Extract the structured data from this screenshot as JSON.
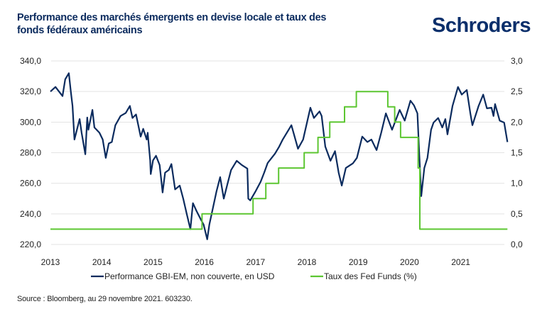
{
  "header": {
    "title": "Performance des marchés émergents en devise locale et taux des fonds fédéraux américains",
    "logo_text": "Schroders"
  },
  "footer": {
    "source": "Source : Bloomberg, au 29 novembre 2021. 603230."
  },
  "colors": {
    "gbi": "#0b2b5e",
    "fed": "#5cc631",
    "grid": "#e3e3e3",
    "text": "#222222"
  },
  "chart_data": {
    "type": "line",
    "title": "",
    "x_ticks": [
      "2013",
      "2014",
      "2015",
      "2016",
      "2017",
      "2018",
      "2019",
      "2020",
      "2021"
    ],
    "xlim": [
      "2013-01-01",
      "2022-01-01"
    ],
    "y_left": {
      "lim": [
        220,
        340
      ],
      "ticks": [
        "220,0",
        "240,0",
        "260,0",
        "280,0",
        "300,0",
        "320,0",
        "340,0"
      ]
    },
    "y_right": {
      "lim": [
        0,
        3
      ],
      "ticks": [
        "0,0",
        "0,5",
        "1,0",
        "1,5",
        "2,0",
        "2,5",
        "3,0"
      ]
    },
    "grid": true,
    "legend_placement": "bottom",
    "series": [
      {
        "name": "Performance GBI-EM, non couverte, en USD",
        "axis": "left",
        "color": "#0b2b5e",
        "points": [
          [
            "2013-01-01",
            320
          ],
          [
            "2013-02-06",
            323
          ],
          [
            "2013-03-28",
            317
          ],
          [
            "2013-04-16",
            328
          ],
          [
            "2013-05-12",
            332
          ],
          [
            "2013-05-26",
            320
          ],
          [
            "2013-06-07",
            310.6
          ],
          [
            "2013-06-21",
            288.6
          ],
          [
            "2013-07-28",
            302
          ],
          [
            "2013-08-11",
            293
          ],
          [
            "2013-09-06",
            279
          ],
          [
            "2013-09-20",
            303
          ],
          [
            "2013-09-28",
            295
          ],
          [
            "2013-10-27",
            308
          ],
          [
            "2013-11-10",
            296.5
          ],
          [
            "2013-12-16",
            293
          ],
          [
            "2014-01-08",
            288.6
          ],
          [
            "2014-01-30",
            276.6
          ],
          [
            "2014-02-20",
            286
          ],
          [
            "2014-03-14",
            287
          ],
          [
            "2014-04-08",
            298
          ],
          [
            "2014-05-15",
            304
          ],
          [
            "2014-06-21",
            306
          ],
          [
            "2014-07-20",
            310.6
          ],
          [
            "2014-08-08",
            302.7
          ],
          [
            "2014-09-02",
            305
          ],
          [
            "2014-10-05",
            290.5
          ],
          [
            "2014-10-23",
            295.6
          ],
          [
            "2014-11-17",
            288.6
          ],
          [
            "2014-11-24",
            293
          ],
          [
            "2014-12-12",
            275
          ],
          [
            "2014-12-16",
            266
          ],
          [
            "2015-01-01",
            275
          ],
          [
            "2015-01-22",
            278
          ],
          [
            "2015-02-17",
            272
          ],
          [
            "2015-03-10",
            254
          ],
          [
            "2015-03-28",
            267
          ],
          [
            "2015-04-23",
            268.7
          ],
          [
            "2015-05-12",
            272.6
          ],
          [
            "2015-06-07",
            256
          ],
          [
            "2015-07-10",
            258.5
          ],
          [
            "2015-08-04",
            250
          ],
          [
            "2015-08-30",
            239.5
          ],
          [
            "2015-09-24",
            230
          ],
          [
            "2015-10-12",
            247
          ],
          [
            "2015-11-06",
            242
          ],
          [
            "2015-12-09",
            236
          ],
          [
            "2015-12-27",
            233
          ],
          [
            "2016-01-22",
            223.4
          ],
          [
            "2016-02-06",
            233
          ],
          [
            "2016-03-03",
            244
          ],
          [
            "2016-03-28",
            254.8
          ],
          [
            "2016-04-23",
            264
          ],
          [
            "2016-05-19",
            250
          ],
          [
            "2016-06-14",
            259.4
          ],
          [
            "2016-07-10",
            268.7
          ],
          [
            "2016-08-19",
            274.7
          ],
          [
            "2016-09-24",
            272
          ],
          [
            "2016-11-03",
            269.6
          ],
          [
            "2016-11-10",
            250
          ],
          [
            "2016-11-24",
            248.8
          ],
          [
            "2017-01-01",
            254.8
          ],
          [
            "2017-02-06",
            261
          ],
          [
            "2017-03-03",
            267
          ],
          [
            "2017-03-28",
            273.3
          ],
          [
            "2017-05-19",
            279.4
          ],
          [
            "2017-06-18",
            284
          ],
          [
            "2017-07-13",
            288.6
          ],
          [
            "2017-09-13",
            298
          ],
          [
            "2017-10-30",
            282.6
          ],
          [
            "2017-12-05",
            288.6
          ],
          [
            "2018-01-26",
            309.4
          ],
          [
            "2018-02-20",
            302.7
          ],
          [
            "2018-04-01",
            307
          ],
          [
            "2018-04-16",
            304
          ],
          [
            "2018-05-12",
            284
          ],
          [
            "2018-06-18",
            274.7
          ],
          [
            "2018-07-20",
            281
          ],
          [
            "2018-08-15",
            267
          ],
          [
            "2018-09-06",
            258.5
          ],
          [
            "2018-10-05",
            270
          ],
          [
            "2018-11-24",
            273
          ],
          [
            "2018-12-23",
            276.6
          ],
          [
            "2019-01-30",
            290.5
          ],
          [
            "2019-03-07",
            287
          ],
          [
            "2019-04-05",
            288.6
          ],
          [
            "2019-05-12",
            281.7
          ],
          [
            "2019-06-14",
            293
          ],
          [
            "2019-07-17",
            305.7
          ],
          [
            "2019-08-30",
            295
          ],
          [
            "2019-09-24",
            301
          ],
          [
            "2019-10-23",
            308
          ],
          [
            "2019-11-28",
            301
          ],
          [
            "2020-01-08",
            314
          ],
          [
            "2020-02-02",
            311
          ],
          [
            "2020-02-27",
            305.7
          ],
          [
            "2020-03-10",
            281
          ],
          [
            "2020-03-25",
            251.6
          ],
          [
            "2020-04-16",
            270
          ],
          [
            "2020-05-08",
            276.6
          ],
          [
            "2020-06-03",
            295
          ],
          [
            "2020-06-21",
            299.7
          ],
          [
            "2020-07-24",
            302.7
          ],
          [
            "2020-08-22",
            296.5
          ],
          [
            "2020-09-13",
            302
          ],
          [
            "2020-09-28",
            292
          ],
          [
            "2020-11-03",
            310.6
          ],
          [
            "2020-12-12",
            323
          ],
          [
            "2021-01-08",
            318
          ],
          [
            "2021-02-13",
            321
          ],
          [
            "2021-03-10",
            305.7
          ],
          [
            "2021-03-25",
            298
          ],
          [
            "2021-05-08",
            310.6
          ],
          [
            "2021-06-10",
            318
          ],
          [
            "2021-07-06",
            309
          ],
          [
            "2021-08-08",
            309.4
          ],
          [
            "2021-08-22",
            304
          ],
          [
            "2021-09-02",
            311.8
          ],
          [
            "2021-10-05",
            301
          ],
          [
            "2021-11-06",
            299.7
          ],
          [
            "2021-11-29",
            287
          ]
        ]
      },
      {
        "name": "Taux des Fed Funds (%)",
        "axis": "right",
        "color": "#5cc631",
        "step": true,
        "points": [
          [
            "2013-01-01",
            0.25
          ],
          [
            "2015-12-16",
            0.5
          ],
          [
            "2016-12-14",
            0.75
          ],
          [
            "2017-03-15",
            1.0
          ],
          [
            "2017-06-14",
            1.25
          ],
          [
            "2017-12-13",
            1.5
          ],
          [
            "2018-03-21",
            1.75
          ],
          [
            "2018-06-13",
            2.0
          ],
          [
            "2018-09-26",
            2.25
          ],
          [
            "2018-12-19",
            2.5
          ],
          [
            "2019-07-31",
            2.25
          ],
          [
            "2019-09-18",
            2.0
          ],
          [
            "2019-10-30",
            1.75
          ],
          [
            "2020-03-03",
            1.25
          ],
          [
            "2020-03-15",
            0.25
          ],
          [
            "2021-11-29",
            0.25
          ]
        ]
      }
    ]
  }
}
